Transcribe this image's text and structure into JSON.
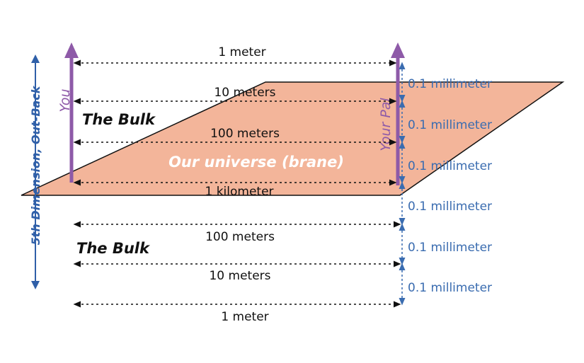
{
  "axis": {
    "label": "5th Dimension, Out-Back",
    "color": "#2f5fa8"
  },
  "brane": {
    "label": "Our universe (brane)",
    "fill": "#f3b59a"
  },
  "bulk": {
    "upper_label": "The Bulk",
    "lower_label": "The Bulk"
  },
  "people": {
    "you": "You",
    "pal": "Your Pal",
    "arrow_color": "#8e5aa8"
  },
  "distances": [
    "1 meter",
    "10 meters",
    "100 meters",
    "1 kilometer",
    "100 meters",
    "10 meters",
    "1 meter"
  ],
  "separations": [
    "0.1 millimeter",
    "0.1 millimeter",
    "0.1 millimeter",
    "0.1 millimeter",
    "0.1 millimeter",
    "0.1 millimeter"
  ],
  "colors": {
    "dimension_line": "#111111",
    "separation": "#3a6cb0"
  }
}
